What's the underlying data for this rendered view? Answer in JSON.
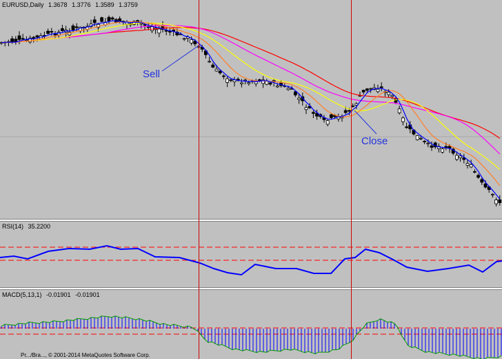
{
  "main": {
    "symbol": "EURUSD,Daily",
    "open": "1.3678",
    "high": "1.3776",
    "low": "1.3589",
    "close": "1.3759"
  },
  "rsi": {
    "label": "RSI(14)",
    "value": "35.2200"
  },
  "macd": {
    "label": "MACD(5,13,1)",
    "value1": "-0.01901",
    "value2": "-0.01901"
  },
  "annotations": {
    "sell": "Sell",
    "close": "Close"
  },
  "footer": "Pr.../Bra..., © 2001-2014 MetaQuotes Software Corp.",
  "colors": {
    "background": "#c0c0c0",
    "candle_bull": "#ffffff",
    "candle_bear": "#000000",
    "ma1": "#0000ff",
    "ma2": "#ff7f27",
    "ma3": "#ffff00",
    "ma4": "#ff00ff",
    "ma5": "#ff0000",
    "rsi_line": "#0000ff",
    "level_line": "#ff0000",
    "macd_hist": "#0000ff",
    "macd_signal": "#009900",
    "marker_line": "#d00000"
  }
}
